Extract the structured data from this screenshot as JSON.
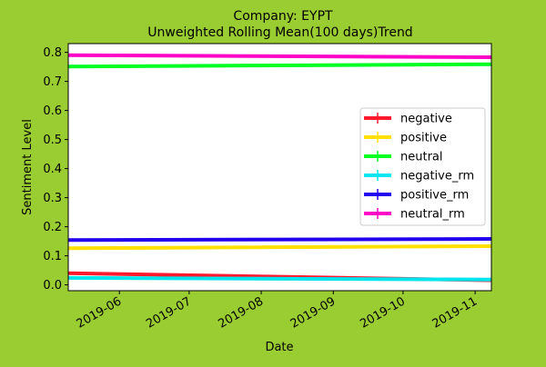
{
  "chart_data": {
    "type": "line",
    "title_line1": "Company: EYPT",
    "title_line2": "Unweighted Rolling Mean(100 days)Trend",
    "xlabel": "Date",
    "ylabel": "Sentiment Level",
    "x_range": [
      "2019-05-10",
      "2019-11-08"
    ],
    "ylim": [
      -0.02,
      0.83
    ],
    "x_ticks": [
      {
        "date": "2019-06-01",
        "label": "2019-06"
      },
      {
        "date": "2019-07-01",
        "label": "2019-07"
      },
      {
        "date": "2019-08-01",
        "label": "2019-08"
      },
      {
        "date": "2019-09-01",
        "label": "2019-09"
      },
      {
        "date": "2019-10-01",
        "label": "2019-10"
      },
      {
        "date": "2019-11-01",
        "label": "2019-11"
      }
    ],
    "y_ticks": [
      0.0,
      0.1,
      0.2,
      0.3,
      0.4,
      0.5,
      0.6,
      0.7,
      0.8
    ],
    "y_tick_labels": [
      "0.0",
      "0.1",
      "0.2",
      "0.3",
      "0.4",
      "0.5",
      "0.6",
      "0.7",
      "0.8"
    ],
    "grid": false,
    "legend_position": "center-right",
    "series": [
      {
        "name": "negative",
        "color": "#ff1a2e",
        "x": [
          "2019-05-10",
          "2019-11-08"
        ],
        "y": [
          0.04,
          0.016
        ]
      },
      {
        "name": "positive",
        "color": "#ffe000",
        "x": [
          "2019-05-10",
          "2019-11-08"
        ],
        "y": [
          0.126,
          0.133
        ]
      },
      {
        "name": "neutral",
        "color": "#00ff22",
        "x": [
          "2019-05-10",
          "2019-11-08"
        ],
        "y": [
          0.751,
          0.759
        ]
      },
      {
        "name": "negative_rm",
        "color": "#00e5ee",
        "x": [
          "2019-05-10",
          "2019-11-08"
        ],
        "y": [
          0.024,
          0.018
        ]
      },
      {
        "name": "positive_rm",
        "color": "#2200ee",
        "x": [
          "2019-05-10",
          "2019-11-08"
        ],
        "y": [
          0.154,
          0.158
        ]
      },
      {
        "name": "neutral_rm",
        "color": "#ff00c8",
        "x": [
          "2019-05-10",
          "2019-11-08"
        ],
        "y": [
          0.79,
          0.783
        ]
      }
    ]
  }
}
